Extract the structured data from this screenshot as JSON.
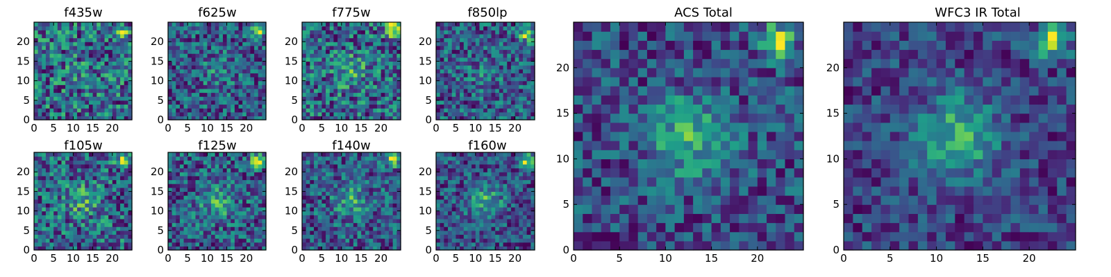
{
  "chart_data": [
    {
      "type": "heatmap",
      "title": "f435w",
      "xlim": [
        0,
        25
      ],
      "ylim": [
        0,
        25
      ],
      "xticks": [
        "0",
        "5",
        "10",
        "15",
        "20"
      ],
      "yticks": [
        "0",
        "5",
        "10",
        "15",
        "20"
      ],
      "colormap": "viridis",
      "bright_spot": [
        22.5,
        22.5
      ],
      "bright_strength": 0.25,
      "center_strength": 0.05,
      "noise": 0.55,
      "seed": 11
    },
    {
      "type": "heatmap",
      "title": "f625w",
      "xlim": [
        0,
        25
      ],
      "ylim": [
        0,
        25
      ],
      "xticks": [
        "0",
        "5",
        "10",
        "15",
        "20"
      ],
      "yticks": [
        "0",
        "5",
        "10",
        "15",
        "20"
      ],
      "colormap": "viridis",
      "bright_spot": [
        23,
        23
      ],
      "bright_strength": 0.45,
      "center_strength": 0.12,
      "noise": 0.45,
      "seed": 23
    },
    {
      "type": "heatmap",
      "title": "f775w",
      "xlim": [
        0,
        25
      ],
      "ylim": [
        0,
        25
      ],
      "xticks": [
        "0",
        "5",
        "10",
        "15",
        "20"
      ],
      "yticks": [
        "0",
        "5",
        "10",
        "15",
        "20"
      ],
      "colormap": "viridis",
      "bright_spot": [
        23,
        23
      ],
      "bright_strength": 0.5,
      "center_strength": 0.15,
      "noise": 0.45,
      "seed": 37
    },
    {
      "type": "heatmap",
      "title": "f850lp",
      "xlim": [
        0,
        25
      ],
      "ylim": [
        0,
        25
      ],
      "xticks": [
        "0",
        "5",
        "10",
        "15",
        "20"
      ],
      "yticks": [
        "0",
        "5",
        "10",
        "15",
        "20"
      ],
      "colormap": "viridis",
      "bright_spot": [
        23,
        22
      ],
      "bright_strength": 0.45,
      "center_strength": 0.1,
      "noise": 0.5,
      "seed": 41
    },
    {
      "type": "heatmap",
      "title": "f105w",
      "xlim": [
        0,
        25
      ],
      "ylim": [
        0,
        25
      ],
      "xticks": [
        "0",
        "5",
        "10",
        "15",
        "20"
      ],
      "yticks": [
        "0",
        "5",
        "10",
        "15",
        "20"
      ],
      "colormap": "viridis",
      "bright_spot": [
        23,
        23
      ],
      "bright_strength": 0.35,
      "center_strength": 0.15,
      "noise": 0.4,
      "seed": 53
    },
    {
      "type": "heatmap",
      "title": "f125w",
      "xlim": [
        0,
        25
      ],
      "ylim": [
        0,
        25
      ],
      "xticks": [
        "0",
        "5",
        "10",
        "15",
        "20"
      ],
      "yticks": [
        "0",
        "5",
        "10",
        "15",
        "20"
      ],
      "colormap": "viridis",
      "bright_spot": [
        23,
        23
      ],
      "bright_strength": 0.45,
      "center_strength": 0.2,
      "noise": 0.4,
      "seed": 67
    },
    {
      "type": "heatmap",
      "title": "f140w",
      "xlim": [
        0,
        25
      ],
      "ylim": [
        0,
        25
      ],
      "xticks": [
        "0",
        "5",
        "10",
        "15",
        "20"
      ],
      "yticks": [
        "0",
        "5",
        "10",
        "15",
        "20"
      ],
      "colormap": "viridis",
      "bright_spot": [
        23,
        23
      ],
      "bright_strength": 0.4,
      "center_strength": 0.2,
      "noise": 0.4,
      "seed": 79
    },
    {
      "type": "heatmap",
      "title": "f160w",
      "xlim": [
        0,
        25
      ],
      "ylim": [
        0,
        25
      ],
      "xticks": [
        "0",
        "5",
        "10",
        "15",
        "20"
      ],
      "yticks": [
        "0",
        "5",
        "10",
        "15",
        "20"
      ],
      "colormap": "viridis",
      "bright_spot": [
        23,
        23
      ],
      "bright_strength": 0.4,
      "center_strength": 0.25,
      "noise": 0.35,
      "seed": 83
    },
    {
      "type": "heatmap",
      "title": "ACS Total",
      "xlim": [
        0,
        25
      ],
      "ylim": [
        0,
        25
      ],
      "xticks": [
        "0",
        "5",
        "10",
        "15",
        "20"
      ],
      "yticks": [
        "0",
        "5",
        "10",
        "15",
        "20"
      ],
      "colormap": "viridis",
      "bright_spot": [
        22,
        23
      ],
      "bright_strength": 0.5,
      "center_strength": 0.3,
      "noise": 0.35,
      "seed": 97
    },
    {
      "type": "heatmap",
      "title": "WFC3 IR Total",
      "xlim": [
        0,
        25
      ],
      "ylim": [
        0,
        25
      ],
      "xticks": [
        "0",
        "5",
        "10",
        "15",
        "20"
      ],
      "yticks": [
        "0",
        "5",
        "10",
        "15",
        "20"
      ],
      "colormap": "viridis",
      "bright_spot": [
        22.5,
        23
      ],
      "bright_strength": 0.5,
      "center_strength": 0.35,
      "noise": 0.3,
      "seed": 101
    }
  ]
}
